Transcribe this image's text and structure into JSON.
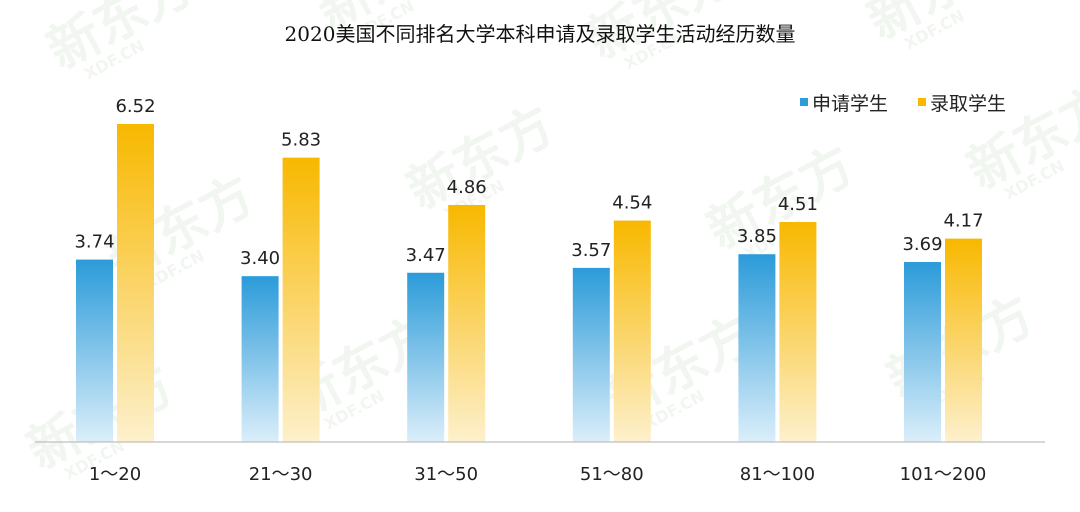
{
  "chart_data": {
    "type": "bar",
    "title": "2020美国不同排名大学本科申请及录取学生活动经历数量",
    "categories": [
      "1～20",
      "21～30",
      "31～50",
      "51～80",
      "81～100",
      "101～200"
    ],
    "series": [
      {
        "name": "申请学生",
        "values": [
          3.74,
          3.4,
          3.47,
          3.57,
          3.85,
          3.69
        ],
        "color_top": "#2b9bd9",
        "color_bottom": "#dbeefa"
      },
      {
        "name": "录取学生",
        "values": [
          6.52,
          5.83,
          4.86,
          4.54,
          4.51,
          4.17
        ],
        "color_top": "#f8b800",
        "color_bottom": "#fdf0cc"
      }
    ],
    "value_labels": {
      "申请学生": [
        "3.74",
        "3.40",
        "3.47",
        "3.57",
        "3.85",
        "3.69"
      ],
      "录取学生": [
        "6.52",
        "5.83",
        "4.86",
        "4.54",
        "4.51",
        "4.17"
      ]
    },
    "ylim": [
      0,
      6.52
    ],
    "grid": false,
    "legend_position": "top-right",
    "watermark": {
      "text": "新东方",
      "subtext": "XDF.CN"
    }
  }
}
